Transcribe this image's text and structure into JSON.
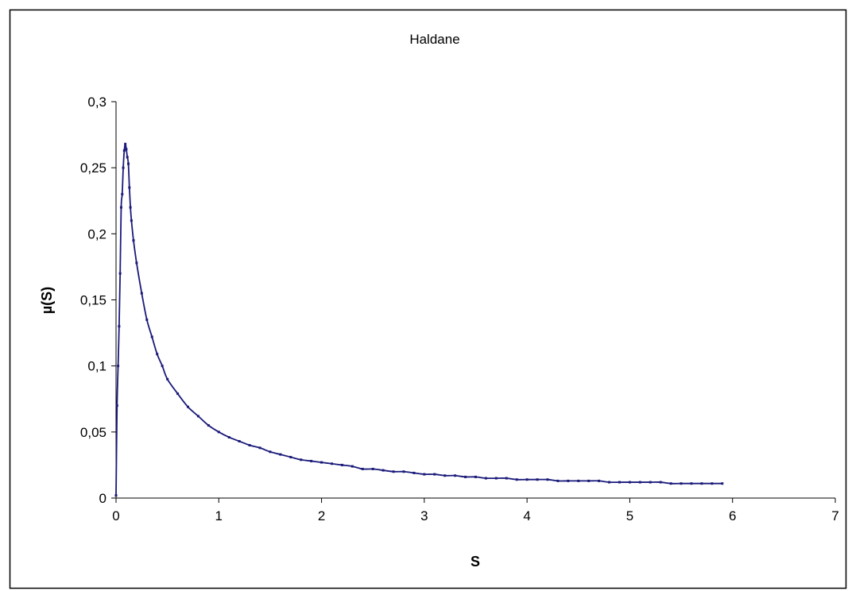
{
  "chart_data": {
    "type": "scatter",
    "title": "Haldane",
    "xlabel": "S",
    "ylabel": "µ(S)",
    "xlim": [
      0,
      7
    ],
    "ylim": [
      0,
      0.3
    ],
    "x_ticks": [
      "0",
      "1",
      "2",
      "3",
      "4",
      "5",
      "6",
      "7"
    ],
    "y_ticks": [
      "0",
      "0,05",
      "0,1",
      "0,15",
      "0,2",
      "0,25",
      "0,3"
    ],
    "grid": false,
    "legend": "none",
    "line_color": "#1a1a7a",
    "series": [
      {
        "x": [
          0,
          0.01,
          0.02,
          0.03,
          0.04,
          0.05,
          0.06,
          0.07,
          0.08,
          0.09,
          0.1,
          0.11,
          0.12,
          0.13,
          0.14,
          0.15,
          0.17,
          0.2,
          0.25,
          0.3,
          0.35,
          0.4,
          0.45,
          0.5,
          0.6,
          0.7,
          0.8,
          0.9,
          1.0,
          1.1,
          1.2,
          1.3,
          1.4,
          1.5,
          1.6,
          1.7,
          1.8,
          1.9,
          2.0,
          2.1,
          2.2,
          2.3,
          2.4,
          2.5,
          2.6,
          2.7,
          2.8,
          2.9,
          3.0,
          3.1,
          3.2,
          3.3,
          3.4,
          3.5,
          3.6,
          3.7,
          3.8,
          3.9,
          4.0,
          4.1,
          4.2,
          4.3,
          4.4,
          4.5,
          4.6,
          4.7,
          4.8,
          4.9,
          5.0,
          5.1,
          5.2,
          5.3,
          5.4,
          5.5,
          5.6,
          5.7,
          5.8,
          5.9
        ],
        "y": [
          0.002,
          0.07,
          0.1,
          0.13,
          0.17,
          0.22,
          0.23,
          0.25,
          0.263,
          0.268,
          0.264,
          0.258,
          0.253,
          0.235,
          0.22,
          0.21,
          0.195,
          0.178,
          0.155,
          0.135,
          0.122,
          0.109,
          0.1,
          0.09,
          0.079,
          0.069,
          0.062,
          0.055,
          0.05,
          0.046,
          0.043,
          0.04,
          0.038,
          0.035,
          0.033,
          0.031,
          0.029,
          0.028,
          0.027,
          0.026,
          0.025,
          0.024,
          0.022,
          0.022,
          0.021,
          0.02,
          0.02,
          0.019,
          0.018,
          0.018,
          0.017,
          0.017,
          0.016,
          0.016,
          0.015,
          0.015,
          0.015,
          0.014,
          0.014,
          0.014,
          0.014,
          0.013,
          0.013,
          0.013,
          0.013,
          0.013,
          0.012,
          0.012,
          0.012,
          0.012,
          0.012,
          0.012,
          0.011,
          0.011,
          0.011,
          0.011,
          0.011,
          0.011
        ]
      }
    ]
  }
}
